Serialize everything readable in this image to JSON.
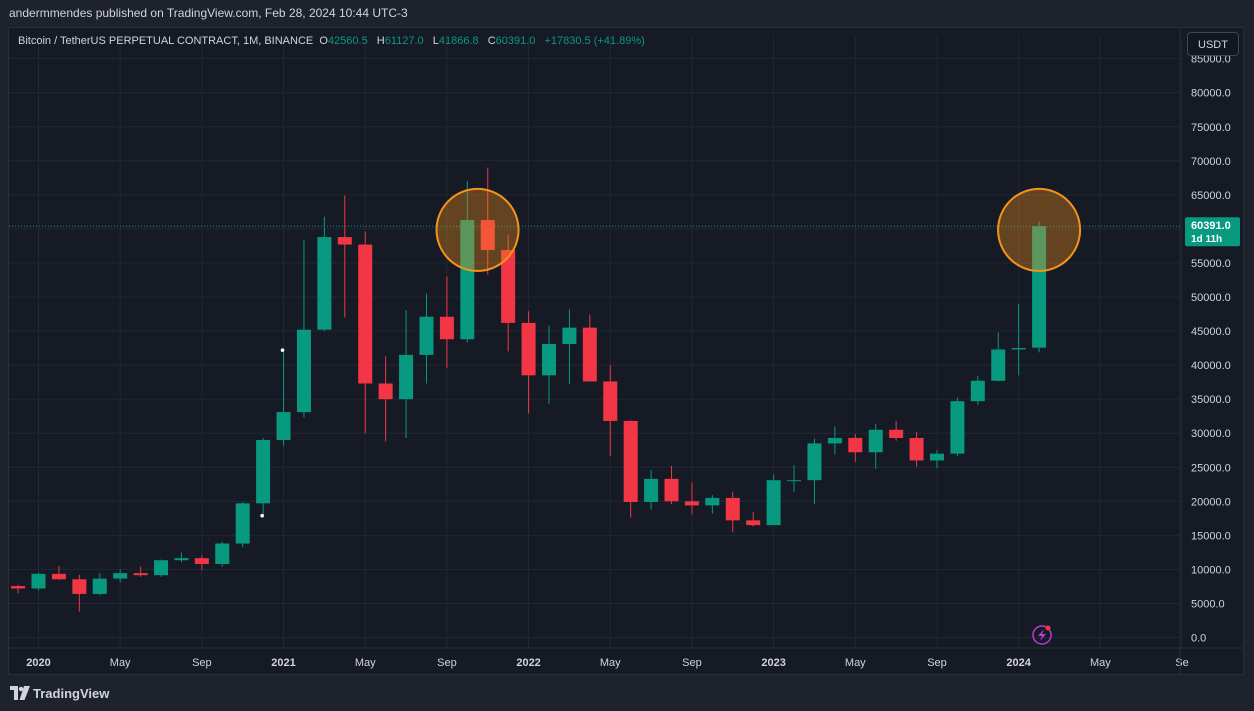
{
  "header": {
    "publisher_line": "andermmendes published on TradingView.com, Feb 28, 2024 10:44 UTC-3"
  },
  "legend": {
    "symbol": "Bitcoin / TetherUS PERPETUAL CONTRACT, 1M, BINANCE",
    "o_label": "O",
    "o_value": "42560.5",
    "h_label": "H",
    "h_value": "61127.0",
    "l_label": "L",
    "l_value": "41866.8",
    "c_label": "C",
    "c_value": "60391.0",
    "change": "+17830.5 (+41.89%)"
  },
  "currency_button": "USDT",
  "price_tag": {
    "price": "60391.0",
    "countdown": "1d 11h"
  },
  "footer": {
    "brand": "TradingView"
  },
  "colors": {
    "up": "#089981",
    "down": "#f23645",
    "grid": "#232733",
    "axis_text": "#d1d4dc",
    "highlight": "#f7931a",
    "price_line": "#089981"
  },
  "chart_data": {
    "type": "candlestick",
    "y_unit": "USDT",
    "ylim": [
      -1500,
      86500
    ],
    "y_ticks": [
      "0.0",
      "5000.0",
      "10000.0",
      "15000.0",
      "20000.0",
      "25000.0",
      "30000.0",
      "35000.0",
      "40000.0",
      "45000.0",
      "50000.0",
      "55000.0",
      "60000.0",
      "65000.0",
      "70000.0",
      "75000.0",
      "80000.0",
      "85000.0"
    ],
    "x_ticks": [
      {
        "label": "2020",
        "month": "2020-01"
      },
      {
        "label": "May",
        "month": "2020-05"
      },
      {
        "label": "Sep",
        "month": "2020-09"
      },
      {
        "label": "2021",
        "month": "2021-01"
      },
      {
        "label": "May",
        "month": "2021-05"
      },
      {
        "label": "Sep",
        "month": "2021-09"
      },
      {
        "label": "2022",
        "month": "2022-01"
      },
      {
        "label": "May",
        "month": "2022-05"
      },
      {
        "label": "Sep",
        "month": "2022-09"
      },
      {
        "label": "2023",
        "month": "2023-01"
      },
      {
        "label": "May",
        "month": "2023-05"
      },
      {
        "label": "Sep",
        "month": "2023-09"
      },
      {
        "label": "2024",
        "month": "2024-01"
      },
      {
        "label": "May",
        "month": "2024-05"
      },
      {
        "label": "Se",
        "month": "2024-09"
      }
    ],
    "candles": [
      {
        "month": "2019-12",
        "o": 7550,
        "h": 7750,
        "l": 6500,
        "c": 7200
      },
      {
        "month": "2020-01",
        "o": 7200,
        "h": 9550,
        "l": 6900,
        "c": 9350
      },
      {
        "month": "2020-02",
        "o": 9350,
        "h": 10500,
        "l": 8450,
        "c": 8550
      },
      {
        "month": "2020-03",
        "o": 8550,
        "h": 9200,
        "l": 3800,
        "c": 6400
      },
      {
        "month": "2020-04",
        "o": 6400,
        "h": 9450,
        "l": 6200,
        "c": 8650
      },
      {
        "month": "2020-05",
        "o": 8650,
        "h": 10000,
        "l": 8100,
        "c": 9450
      },
      {
        "month": "2020-06",
        "o": 9450,
        "h": 10400,
        "l": 8900,
        "c": 9150
      },
      {
        "month": "2020-07",
        "o": 9150,
        "h": 11450,
        "l": 8900,
        "c": 11350
      },
      {
        "month": "2020-08",
        "o": 11350,
        "h": 12500,
        "l": 11050,
        "c": 11650
      },
      {
        "month": "2020-09",
        "o": 11650,
        "h": 12050,
        "l": 9900,
        "c": 10800
      },
      {
        "month": "2020-10",
        "o": 10800,
        "h": 14050,
        "l": 10400,
        "c": 13800
      },
      {
        "month": "2020-11",
        "o": 13800,
        "h": 19900,
        "l": 13250,
        "c": 19700
      },
      {
        "month": "2020-12",
        "o": 19700,
        "h": 29300,
        "l": 17600,
        "c": 29000
      },
      {
        "month": "2021-01",
        "o": 29000,
        "h": 41900,
        "l": 28150,
        "c": 33100
      },
      {
        "month": "2021-02",
        "o": 33100,
        "h": 58350,
        "l": 32300,
        "c": 45200
      },
      {
        "month": "2021-03",
        "o": 45200,
        "h": 61800,
        "l": 45000,
        "c": 58800
      },
      {
        "month": "2021-04",
        "o": 58800,
        "h": 64900,
        "l": 47000,
        "c": 57700
      },
      {
        "month": "2021-05",
        "o": 57700,
        "h": 59600,
        "l": 30000,
        "c": 37300
      },
      {
        "month": "2021-06",
        "o": 37300,
        "h": 41300,
        "l": 28800,
        "c": 35000
      },
      {
        "month": "2021-07",
        "o": 35000,
        "h": 48100,
        "l": 29300,
        "c": 41500
      },
      {
        "month": "2021-08",
        "o": 41500,
        "h": 50500,
        "l": 37300,
        "c": 47100
      },
      {
        "month": "2021-09",
        "o": 47100,
        "h": 53000,
        "l": 39600,
        "c": 43800
      },
      {
        "month": "2021-10",
        "o": 43800,
        "h": 67000,
        "l": 43300,
        "c": 61300
      },
      {
        "month": "2021-11",
        "o": 61300,
        "h": 69000,
        "l": 53300,
        "c": 56900
      },
      {
        "month": "2021-12",
        "o": 56900,
        "h": 59100,
        "l": 42000,
        "c": 46200
      },
      {
        "month": "2022-01",
        "o": 46200,
        "h": 47900,
        "l": 32900,
        "c": 38500
      },
      {
        "month": "2022-02",
        "o": 38500,
        "h": 45800,
        "l": 34300,
        "c": 43100
      },
      {
        "month": "2022-03",
        "o": 43100,
        "h": 48200,
        "l": 37200,
        "c": 45500
      },
      {
        "month": "2022-04",
        "o": 45500,
        "h": 47400,
        "l": 37600,
        "c": 37600
      },
      {
        "month": "2022-05",
        "o": 37600,
        "h": 40000,
        "l": 26700,
        "c": 31800
      },
      {
        "month": "2022-06",
        "o": 31800,
        "h": 31900,
        "l": 17600,
        "c": 19900
      },
      {
        "month": "2022-07",
        "o": 19900,
        "h": 24600,
        "l": 18800,
        "c": 23300
      },
      {
        "month": "2022-08",
        "o": 23300,
        "h": 25200,
        "l": 19600,
        "c": 20000
      },
      {
        "month": "2022-09",
        "o": 20000,
        "h": 22800,
        "l": 18100,
        "c": 19400
      },
      {
        "month": "2022-10",
        "o": 19400,
        "h": 20900,
        "l": 18200,
        "c": 20500
      },
      {
        "month": "2022-11",
        "o": 20500,
        "h": 21400,
        "l": 15500,
        "c": 17200
      },
      {
        "month": "2022-12",
        "o": 17200,
        "h": 18400,
        "l": 16300,
        "c": 16500
      },
      {
        "month": "2023-01",
        "o": 16500,
        "h": 23900,
        "l": 16500,
        "c": 23100
      },
      {
        "month": "2023-02",
        "o": 23100,
        "h": 25300,
        "l": 21400,
        "c": 23100
      },
      {
        "month": "2023-03",
        "o": 23100,
        "h": 29200,
        "l": 19600,
        "c": 28500
      },
      {
        "month": "2023-04",
        "o": 28500,
        "h": 31000,
        "l": 26900,
        "c": 29300
      },
      {
        "month": "2023-05",
        "o": 29300,
        "h": 29900,
        "l": 25800,
        "c": 27200
      },
      {
        "month": "2023-06",
        "o": 27200,
        "h": 31400,
        "l": 24800,
        "c": 30500
      },
      {
        "month": "2023-07",
        "o": 30500,
        "h": 31800,
        "l": 28900,
        "c": 29300
      },
      {
        "month": "2023-08",
        "o": 29300,
        "h": 30200,
        "l": 25100,
        "c": 26000
      },
      {
        "month": "2023-09",
        "o": 26000,
        "h": 27500,
        "l": 24900,
        "c": 27000
      },
      {
        "month": "2023-10",
        "o": 27000,
        "h": 35200,
        "l": 26600,
        "c": 34700
      },
      {
        "month": "2023-11",
        "o": 34700,
        "h": 38400,
        "l": 34200,
        "c": 37700
      },
      {
        "month": "2023-12",
        "o": 37700,
        "h": 44800,
        "l": 37600,
        "c": 42300
      },
      {
        "month": "2024-01",
        "o": 42300,
        "h": 49000,
        "l": 38500,
        "c": 42500
      },
      {
        "month": "2024-02",
        "o": 42560.5,
        "h": 61127.0,
        "l": 41866.8,
        "c": 60391.0
      }
    ],
    "highlights": [
      {
        "month": "2021-10.5",
        "price": 60000
      },
      {
        "month": "2024-02",
        "price": 60000
      }
    ],
    "last_price": 60391.0
  }
}
